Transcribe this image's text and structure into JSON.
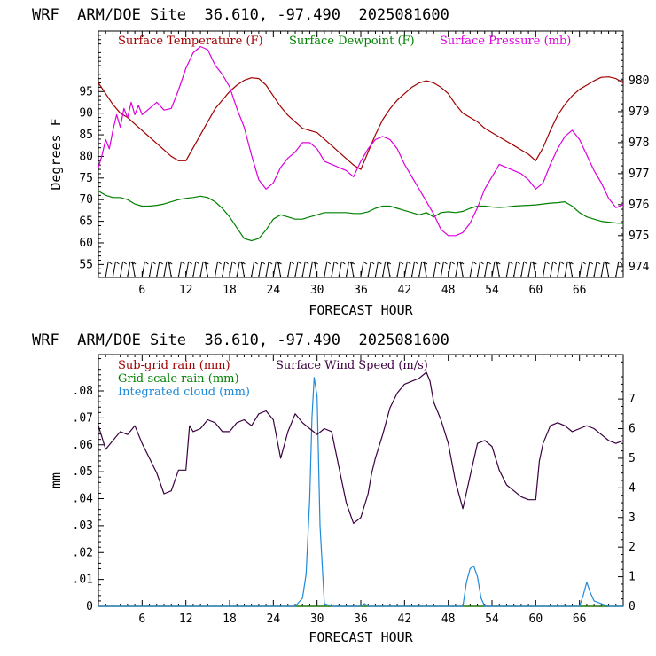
{
  "chart_data": [
    {
      "type": "line",
      "header": "WRF  ARM/DOE Site  36.610, -97.490  2025081600",
      "xlabel": "FORECAST HOUR",
      "ylabel": "Degrees F",
      "xlim": [
        0,
        72
      ],
      "ylim": [
        52,
        109
      ],
      "y2lim": [
        973.65,
        981.6
      ],
      "xticks": [
        "6",
        "12",
        "18",
        "24",
        "30",
        "36",
        "42",
        "48",
        "54",
        "60",
        "66"
      ],
      "yticks": [
        "55",
        "60",
        "65",
        "70",
        "75",
        "80",
        "85",
        "90",
        "95"
      ],
      "y2ticks": [
        "974",
        "975",
        "976",
        "977",
        "978",
        "979",
        "980"
      ],
      "series": [
        {
          "name": "Surface Temperature (F)",
          "color": "#a00000",
          "axis": "left",
          "x": [
            0,
            1,
            2,
            3,
            4,
            5,
            6,
            7,
            8,
            9,
            10,
            11,
            12,
            13,
            14,
            15,
            16,
            17,
            18,
            19,
            20,
            21,
            22,
            23,
            24,
            25,
            26,
            27,
            28,
            29,
            30,
            31,
            32,
            33,
            34,
            35,
            36,
            37,
            38,
            39,
            40,
            41,
            42,
            43,
            44,
            45,
            46,
            47,
            48,
            49,
            50,
            51,
            52,
            53,
            54,
            55,
            56,
            57,
            58,
            59,
            60,
            61,
            62,
            63,
            64,
            65,
            66,
            67,
            68,
            69,
            70,
            71,
            72
          ],
          "values": [
            97,
            94.5,
            92,
            90,
            89,
            87.5,
            86,
            84.5,
            83,
            81.5,
            80,
            79,
            79,
            82,
            85,
            88,
            91,
            93,
            95,
            96.5,
            97.6,
            98.2,
            98,
            96.5,
            94,
            91.5,
            89.5,
            88,
            86.5,
            86,
            85.5,
            84,
            82.5,
            81,
            79.5,
            78,
            77,
            81,
            85,
            88.5,
            91,
            93,
            94.5,
            96,
            97,
            97.5,
            97,
            96,
            94.5,
            92,
            90,
            89,
            88,
            86.5,
            85.5,
            84.5,
            83.5,
            82.5,
            81.5,
            80.5,
            79,
            82,
            86,
            89.5,
            92,
            94,
            95.5,
            96.5,
            97.5,
            98.3,
            98.4,
            98,
            97
          ]
        },
        {
          "name": "Surface Dewpoint (F)",
          "color": "#008000",
          "axis": "left",
          "x": [
            0,
            1,
            2,
            3,
            4,
            5,
            6,
            7,
            8,
            9,
            10,
            11,
            12,
            13,
            14,
            15,
            16,
            17,
            18,
            19,
            20,
            21,
            22,
            23,
            24,
            25,
            26,
            27,
            28,
            29,
            30,
            31,
            32,
            33,
            34,
            35,
            36,
            37,
            38,
            39,
            40,
            41,
            42,
            43,
            44,
            45,
            46,
            47,
            48,
            49,
            50,
            51,
            52,
            53,
            54,
            55,
            56,
            57,
            58,
            59,
            60,
            61,
            62,
            63,
            64,
            65,
            66,
            67,
            68,
            69,
            70,
            71,
            72
          ],
          "values": [
            72,
            71,
            70.5,
            70.5,
            70,
            69,
            68.5,
            68.5,
            68.7,
            69,
            69.5,
            70,
            70.3,
            70.5,
            70.8,
            70.5,
            69.5,
            68,
            66,
            63.5,
            61,
            60.5,
            61,
            63,
            65.5,
            66.5,
            66,
            65.5,
            65.5,
            66,
            66.5,
            67,
            67,
            67,
            67,
            66.8,
            66.8,
            67.2,
            68,
            68.5,
            68.5,
            68,
            67.5,
            67,
            66.5,
            67,
            66,
            67,
            67.2,
            67,
            67.3,
            68,
            68.5,
            68.5,
            68.3,
            68.2,
            68.3,
            68.5,
            68.6,
            68.7,
            68.8,
            69,
            69.2,
            69.3,
            69.5,
            68.5,
            67,
            66,
            65.5,
            65,
            64.8,
            64.6,
            64.5
          ]
        },
        {
          "name": "Surface Pressure (mb)",
          "color": "#dd00dd",
          "axis": "right",
          "x": [
            0,
            0.5,
            1,
            1.5,
            2,
            2.5,
            3,
            3.5,
            4,
            4.5,
            5,
            5.5,
            6,
            7,
            8,
            9,
            10,
            11,
            12,
            13,
            14,
            15,
            16,
            17,
            18,
            19,
            20,
            21,
            22,
            23,
            24,
            25,
            26,
            27,
            28,
            29,
            30,
            31,
            32,
            33,
            34,
            35,
            36,
            37,
            38,
            39,
            40,
            41,
            42,
            43,
            44,
            45,
            46,
            47,
            48,
            49,
            50,
            51,
            52,
            53,
            54,
            55,
            56,
            57,
            58,
            59,
            60,
            61,
            62,
            63,
            64,
            65,
            66,
            67,
            68,
            69,
            70,
            71,
            72
          ],
          "values": [
            977.2,
            977.6,
            978.1,
            977.8,
            978.4,
            978.9,
            978.5,
            979.1,
            978.8,
            979.3,
            978.9,
            979.2,
            978.9,
            979.1,
            979.3,
            979.05,
            979.1,
            979.7,
            980.4,
            980.9,
            981.1,
            981,
            980.5,
            980.2,
            979.8,
            979.1,
            978.5,
            977.6,
            976.8,
            976.5,
            976.7,
            977.2,
            977.5,
            977.7,
            978,
            978,
            977.8,
            977.4,
            977.3,
            977.2,
            977.1,
            976.9,
            977.4,
            977.8,
            978.1,
            978.2,
            978.1,
            977.8,
            977.3,
            976.9,
            976.5,
            976.1,
            975.7,
            975.2,
            975,
            975,
            975.1,
            975.4,
            975.9,
            976.5,
            976.9,
            977.3,
            977.2,
            977.1,
            977,
            976.8,
            976.5,
            976.7,
            977.3,
            977.8,
            978.2,
            978.4,
            978.1,
            977.6,
            977.1,
            976.7,
            976.2,
            975.9,
            976
          ]
        }
      ]
    },
    {
      "type": "line",
      "header": "WRF  ARM/DOE Site  36.610, -97.490  2025081600",
      "xlabel": "FORECAST HOUR",
      "ylabel": "mm",
      "xlim": [
        0,
        72
      ],
      "ylim": [
        0,
        0.0935
      ],
      "y2lim": [
        0,
        8.5
      ],
      "xticks": [
        "6",
        "12",
        "18",
        "24",
        "30",
        "36",
        "42",
        "48",
        "54",
        "60",
        "66"
      ],
      "yticks": [
        "0",
        ".01",
        ".02",
        ".03",
        ".04",
        ".05",
        ".06",
        ".07",
        ".08"
      ],
      "y2ticks": [
        "0",
        "1",
        "2",
        "3",
        "4",
        "5",
        "6",
        "7"
      ],
      "series": [
        {
          "name": "Sub-grid rain (mm)",
          "color": "#a00000",
          "axis": "left",
          "x": [
            0,
            72
          ],
          "values": [
            0,
            0
          ]
        },
        {
          "name": "Grid-scale rain (mm)",
          "color": "#008000",
          "axis": "left",
          "x": [
            0,
            72
          ],
          "values": [
            0,
            0
          ]
        },
        {
          "name": "Integrated cloud (mm)",
          "color": "#1e8ad8",
          "axis": "left",
          "x": [
            0,
            27,
            28,
            28.5,
            29,
            29.3,
            29.6,
            30,
            30.4,
            31,
            32,
            36,
            36.5,
            37,
            50,
            50.5,
            51,
            51.5,
            52,
            52.5,
            53,
            66,
            66.5,
            67,
            67.5,
            68,
            69,
            70,
            72
          ],
          "values": [
            0,
            0,
            0.003,
            0.012,
            0.04,
            0.07,
            0.085,
            0.078,
            0.03,
            0.001,
            0,
            0,
            0.001,
            0,
            0,
            0.009,
            0.014,
            0.015,
            0.011,
            0.003,
            0,
            0,
            0.004,
            0.009,
            0.005,
            0.002,
            0.001,
            0,
            0
          ]
        },
        {
          "name": "Surface Wind Speed (m/s)",
          "color": "#3a0040",
          "axis": "right",
          "x": [
            0,
            0.5,
            1,
            2,
            3,
            4,
            5,
            6,
            7,
            8,
            9,
            10,
            11,
            12,
            12.5,
            13,
            14,
            15,
            16,
            17,
            18,
            19,
            20,
            21,
            22,
            23,
            24,
            25,
            26,
            27,
            28,
            29,
            30,
            31,
            32,
            33,
            34,
            35,
            36,
            37,
            37.5,
            38,
            39,
            40,
            41,
            42,
            43,
            44,
            45,
            45.5,
            46,
            47,
            48,
            49,
            50,
            51,
            52,
            53,
            54,
            55,
            56,
            57,
            58,
            59,
            60,
            60.5,
            61,
            62,
            63,
            64,
            65,
            66,
            67,
            68,
            69,
            70,
            71,
            72
          ],
          "values": [
            6.1,
            5.7,
            5.3,
            5.6,
            5.9,
            5.8,
            6.1,
            5.5,
            5,
            4.5,
            3.8,
            3.9,
            4.6,
            4.6,
            6.1,
            5.9,
            6,
            6.3,
            6.2,
            5.9,
            5.9,
            6.2,
            6.3,
            6.1,
            6.5,
            6.6,
            6.3,
            5,
            5.9,
            6.5,
            6.2,
            6,
            5.8,
            6,
            5.9,
            4.7,
            3.5,
            2.8,
            3,
            3.8,
            4.5,
            5,
            5.8,
            6.7,
            7.2,
            7.5,
            7.6,
            7.7,
            7.9,
            7.6,
            6.9,
            6.3,
            5.5,
            4.2,
            3.3,
            4.4,
            5.5,
            5.6,
            5.4,
            4.6,
            4.1,
            3.9,
            3.7,
            3.6,
            3.6,
            4.9,
            5.5,
            6.1,
            6.2,
            6.1,
            5.9,
            6,
            6.1,
            6,
            5.8,
            5.6,
            5.5,
            5.6
          ]
        }
      ]
    }
  ]
}
